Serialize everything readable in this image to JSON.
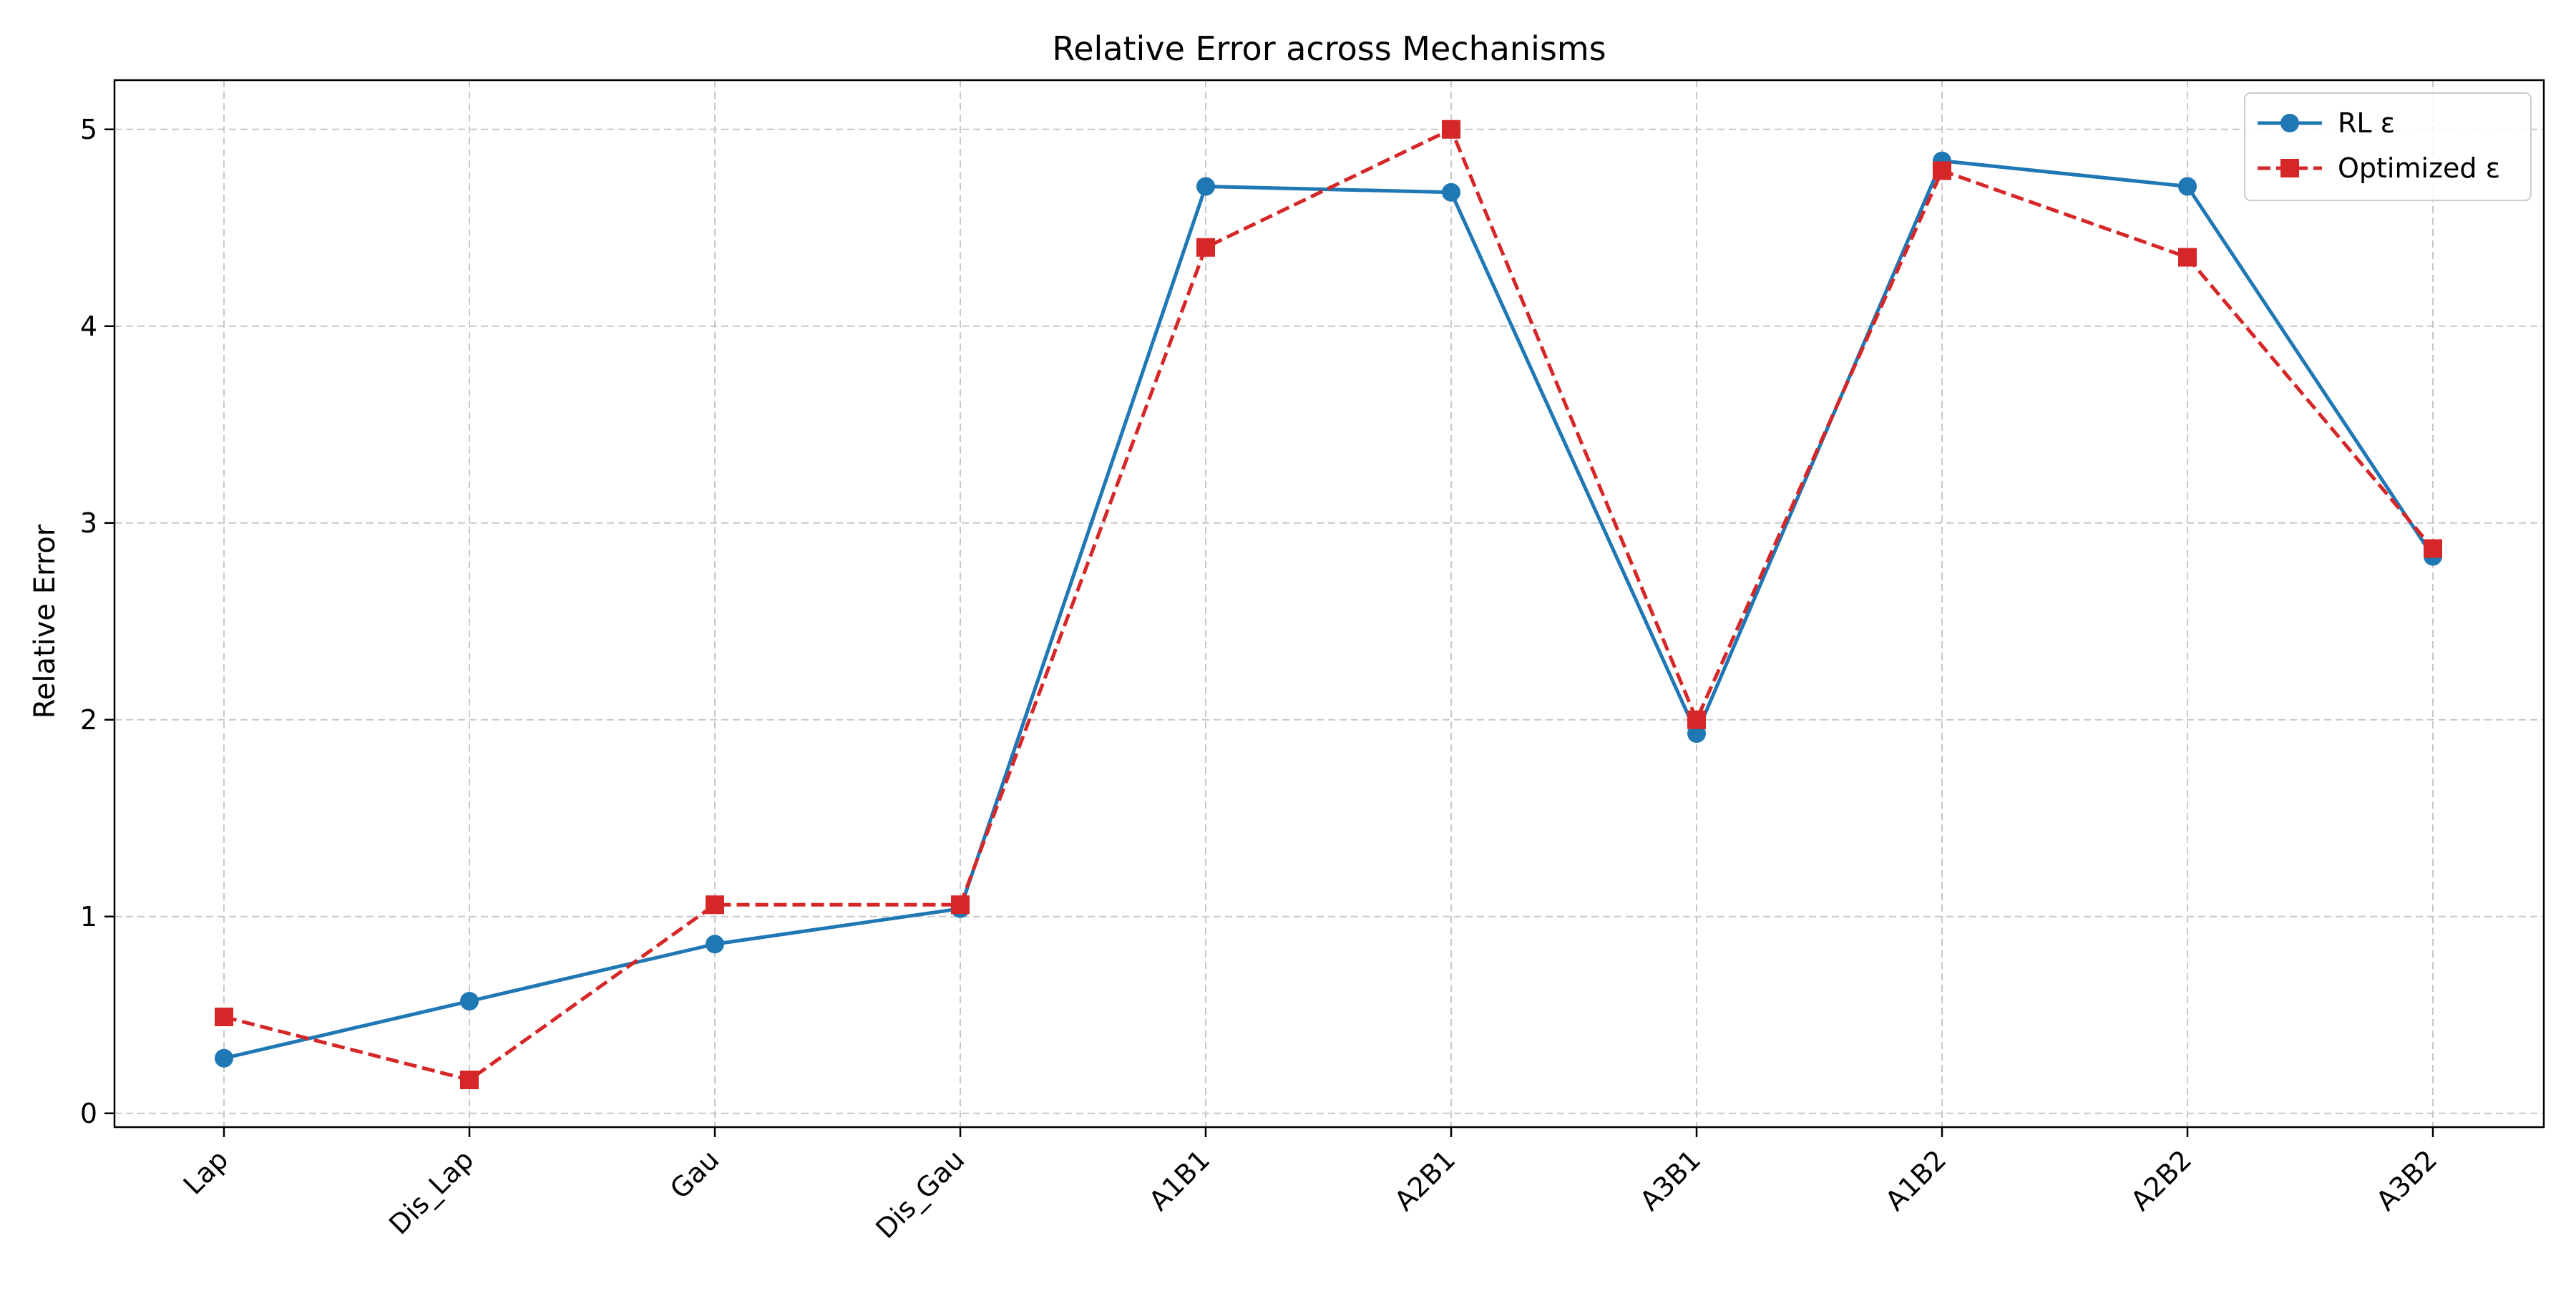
{
  "chart_data": {
    "type": "line",
    "title": "Relative Error across Mechanisms",
    "xlabel": "",
    "ylabel": "Relative Error",
    "categories": [
      "Lap",
      "Dis_Lap",
      "Gau",
      "Dis_Gau",
      "A1B1",
      "A2B1",
      "A3B1",
      "A1B2",
      "A2B2",
      "A3B2"
    ],
    "ylim": [
      -0.07,
      5.25
    ],
    "yticks": [
      0,
      1,
      2,
      3,
      4,
      5
    ],
    "grid": true,
    "legend_position": "top-right",
    "series": [
      {
        "name": "RL ε",
        "values": [
          0.28,
          0.57,
          0.86,
          1.04,
          4.71,
          4.68,
          1.93,
          4.84,
          4.71,
          2.83
        ],
        "color": "#1f77b4",
        "line_style": "solid",
        "marker": "circle"
      },
      {
        "name": "Optimized ε",
        "values": [
          0.49,
          0.17,
          1.06,
          1.06,
          4.4,
          5.0,
          2.0,
          4.79,
          4.35,
          2.87
        ],
        "color": "#d62728",
        "line_style": "dashed",
        "marker": "square"
      }
    ]
  }
}
